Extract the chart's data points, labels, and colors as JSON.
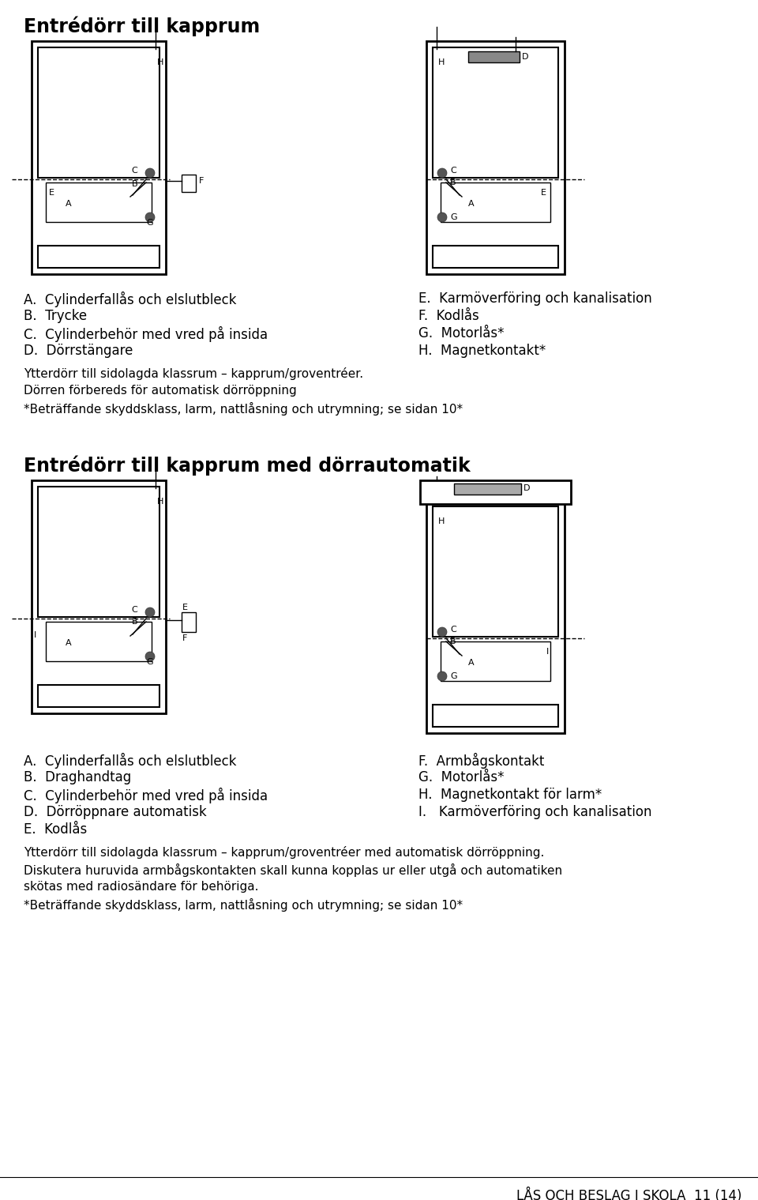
{
  "title1": "Entrédörr till kapprum",
  "title2": "Entrédörr till kapprum med dörrautomatik",
  "left_items_section1": [
    "A.  Cylinderfallås och elslutbleck",
    "B.  Trycke",
    "C.  Cylinderbehör med vred på insida",
    "D.  Dörrstängare"
  ],
  "right_items_section1": [
    "E.  Karmöverföring och kanalisation",
    "F.  Kodlås",
    "G.  Motorlås*",
    "H.  Magnetkontakt*"
  ],
  "para1_lines": [
    "Ytterdörr till sidolagda klassrum – kapprum/groventréer.",
    "Dörren förbereds för automatisk dörröppning",
    "*Beträffande skyddsklass, larm, nattlåsning och utrymning; se sidan 10*"
  ],
  "left_items_section2": [
    "A.  Cylinderfallås och elslutbleck",
    "B.  Draghandtag",
    "C.  Cylinderbehör med vred på insida",
    "D.  Dörröppnare automatisk",
    "E.  Kodlås"
  ],
  "right_items_section2": [
    "F.  Armbågskontakt",
    "G.  Motorlås*",
    "H.  Magnetkontakt för larm*",
    "I.   Karmöverföring och kanalisation"
  ],
  "para2_lines": [
    "Ytterdörr till sidolagda klassrum – kapprum/groventréer med automatisk dörröppning.",
    "Diskutera huruvida armbågskontakten skall kunna kopplas ur eller utgå och automatiken",
    "skötas med radiosändare för behöriga.",
    "*Beträffande skyddsklass, larm, nattlåsning och utrymning; se sidan 10*"
  ],
  "footer": "LÅS OCH BESLAG I SKOLA  11 (14)",
  "bg_color": "#ffffff"
}
